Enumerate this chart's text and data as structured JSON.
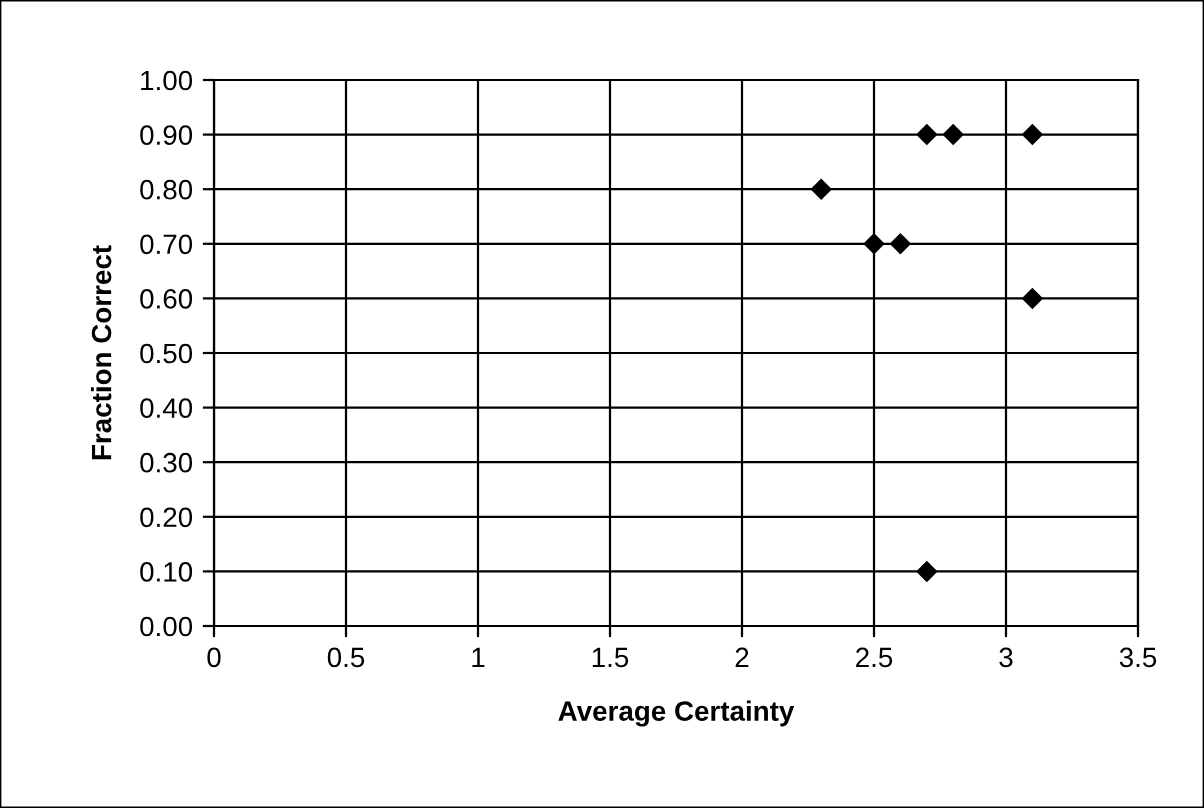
{
  "chart_data": {
    "type": "scatter",
    "xlabel": "Average Certainty",
    "ylabel": "Fraction Correct",
    "x": [
      2.3,
      2.5,
      2.6,
      2.7,
      2.8,
      3.1,
      3.1,
      2.7
    ],
    "values": [
      0.8,
      0.7,
      0.7,
      0.9,
      0.9,
      0.9,
      0.6,
      0.1
    ],
    "color": "#000000",
    "marker": "diamond",
    "xlim": [
      0,
      3.5
    ],
    "xticks": [
      0,
      {
        "value": 0.5,
        "label": "0.5"
      },
      1,
      {
        "value": 1.5,
        "label": "1.5"
      },
      2,
      {
        "value": 2.5,
        "label": "2.5"
      },
      3,
      {
        "value": 3.5,
        "label": "3.5"
      }
    ],
    "ylim": [
      0,
      1
    ],
    "yticks": [
      {
        "value": 0,
        "label": "0.00"
      },
      {
        "value": 0.1,
        "label": "0.10"
      },
      {
        "value": 0.2,
        "label": "0.20"
      },
      {
        "value": 0.3,
        "label": "0.30"
      },
      {
        "value": 0.4,
        "label": "0.40"
      },
      {
        "value": 0.5,
        "label": "0.50"
      },
      {
        "value": 0.6,
        "label": "0.60"
      },
      {
        "value": 0.7,
        "label": "0.70"
      },
      {
        "value": 0.8,
        "label": "0.80"
      },
      {
        "value": 0.9,
        "label": "0.90"
      },
      {
        "value": 1,
        "label": "1.00"
      }
    ],
    "grid": true
  }
}
